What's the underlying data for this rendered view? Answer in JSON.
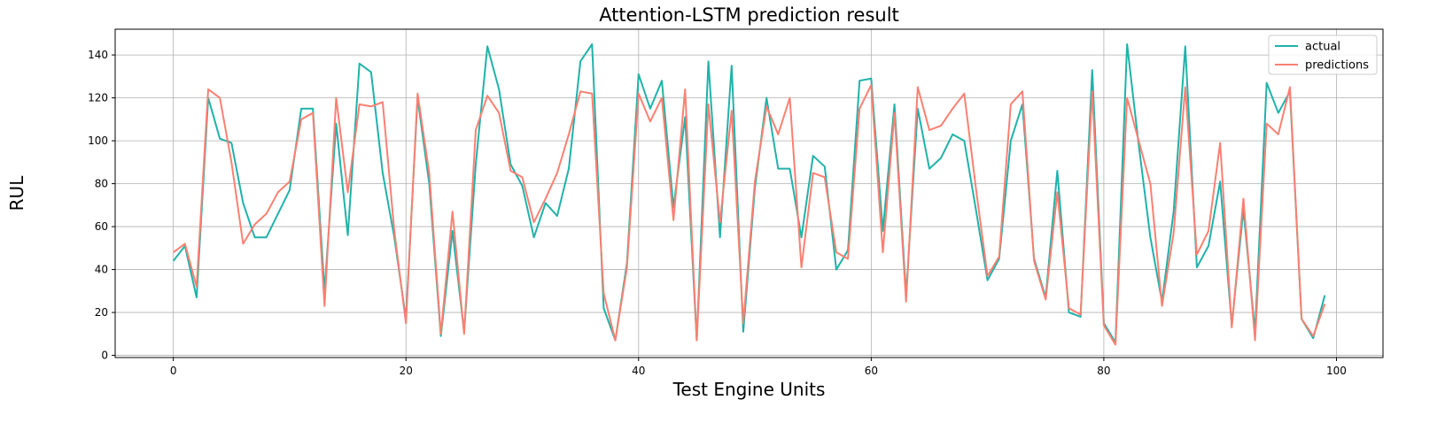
{
  "chart_data": {
    "type": "line",
    "title": "Attention-LSTM prediction result",
    "xlabel": "Test Engine Units",
    "ylabel": "RUL",
    "xlim": [
      -5,
      104
    ],
    "ylim": [
      -1,
      152
    ],
    "xticks": [
      0,
      20,
      40,
      60,
      80,
      100
    ],
    "yticks": [
      0,
      20,
      40,
      60,
      80,
      100,
      120,
      140
    ],
    "grid": true,
    "legend_position": "top-right",
    "series": [
      {
        "name": "actual",
        "color": "#20b2aa",
        "values": [
          44,
          51,
          27,
          120,
          101,
          99,
          71,
          55,
          55,
          66,
          77,
          115,
          115,
          30,
          108,
          56,
          136,
          132,
          85,
          55,
          17,
          120,
          80,
          9,
          58,
          11,
          89,
          144,
          124,
          89,
          79,
          55,
          71,
          65,
          87,
          137,
          145,
          22,
          7,
          43,
          131,
          115,
          128,
          69,
          111,
          7,
          137,
          55,
          135,
          11,
          78,
          120,
          87,
          87,
          55,
          93,
          88,
          40,
          49,
          128,
          129,
          58,
          117,
          28,
          115,
          87,
          92,
          103,
          100,
          68,
          35,
          45,
          100,
          117,
          45,
          27,
          86,
          20,
          18,
          133,
          15,
          6,
          145,
          98,
          55,
          25,
          67,
          144,
          41,
          51,
          81,
          14,
          68,
          11,
          127,
          113,
          123,
          17,
          8,
          28
        ]
      },
      {
        "name": "predictions",
        "color": "#fa8072",
        "values": [
          48,
          52,
          32,
          124,
          120,
          90,
          52,
          61,
          66,
          76,
          81,
          110,
          113,
          23,
          120,
          76,
          117,
          116,
          118,
          58,
          15,
          122,
          85,
          10,
          67,
          10,
          105,
          121,
          113,
          86,
          83,
          62,
          73,
          85,
          103,
          123,
          122,
          29,
          7,
          41,
          122,
          109,
          120,
          63,
          124,
          7,
          117,
          62,
          114,
          15,
          81,
          116,
          103,
          120,
          41,
          85,
          83,
          48,
          45,
          115,
          126,
          48,
          113,
          25,
          125,
          105,
          107,
          115,
          122,
          78,
          37,
          46,
          117,
          123,
          44,
          26,
          76,
          22,
          19,
          123,
          14,
          5,
          120,
          100,
          80,
          23,
          57,
          125,
          47,
          58,
          99,
          13,
          73,
          7,
          108,
          103,
          125,
          17,
          9,
          24
        ]
      }
    ]
  }
}
